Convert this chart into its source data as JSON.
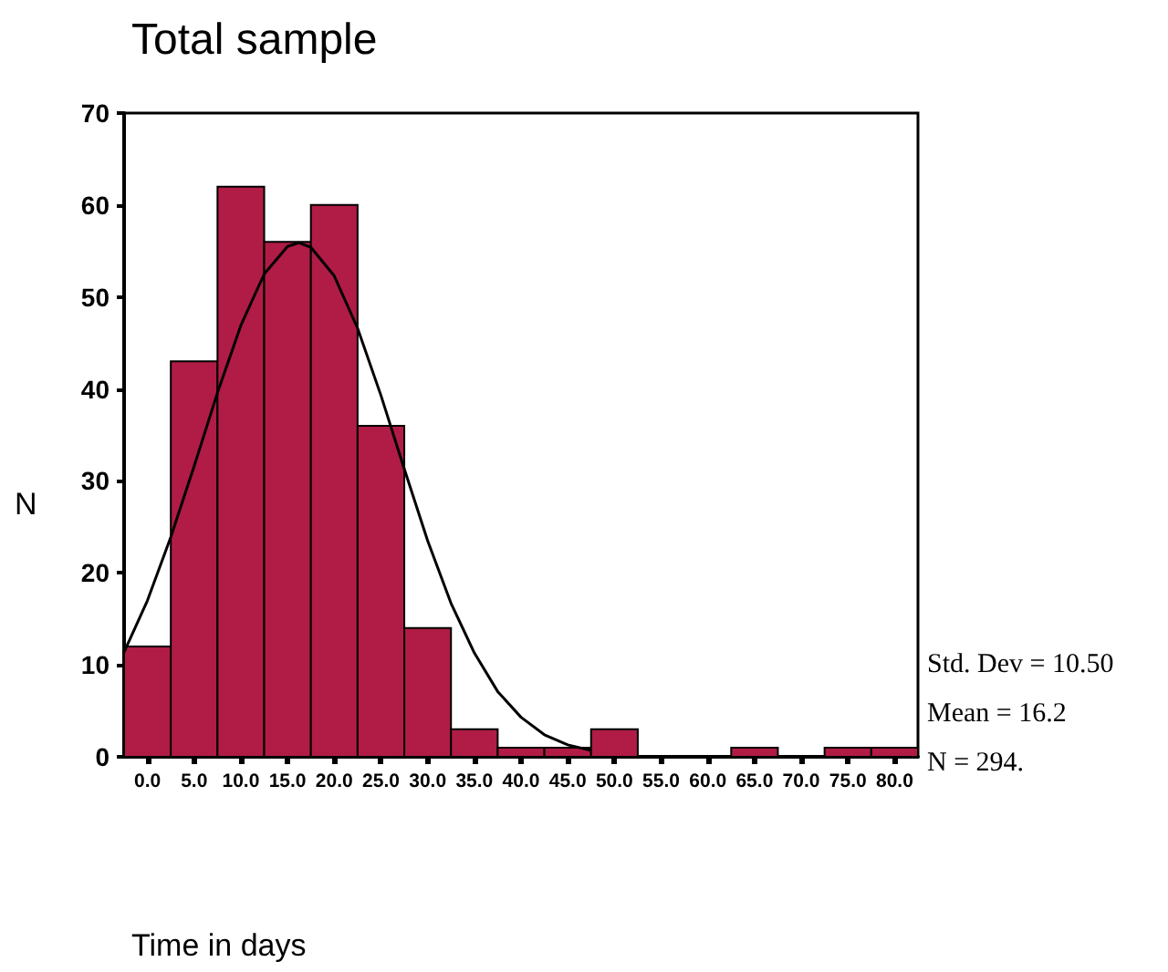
{
  "chart_data": {
    "type": "histogram",
    "title": "Total sample",
    "xlabel": "Time in days",
    "ylabel": "N",
    "annotations": [
      "Std. Dev = 10.50",
      "Mean = 16.2",
      "N = 294."
    ],
    "xlim": [
      -2.5,
      82.5
    ],
    "xticks": [
      {
        "value": 0,
        "label": "0.0"
      },
      {
        "value": 5,
        "label": "5.0"
      },
      {
        "value": 10,
        "label": "10.0"
      },
      {
        "value": 15,
        "label": "15.0"
      },
      {
        "value": 20,
        "label": "20.0"
      },
      {
        "value": 25,
        "label": "25.0"
      },
      {
        "value": 30,
        "label": "30.0"
      },
      {
        "value": 35,
        "label": "35.0"
      },
      {
        "value": 40,
        "label": "40.0"
      },
      {
        "value": 45,
        "label": "45.0"
      },
      {
        "value": 50,
        "label": "50.0"
      },
      {
        "value": 55,
        "label": "55.0"
      },
      {
        "value": 60,
        "label": "60.0"
      },
      {
        "value": 65,
        "label": "65.0"
      },
      {
        "value": 70,
        "label": "70.0"
      },
      {
        "value": 75,
        "label": "75.0"
      },
      {
        "value": 80,
        "label": "80.0"
      }
    ],
    "ylim": [
      0,
      70
    ],
    "yticks": [
      0,
      10,
      20,
      30,
      40,
      50,
      60,
      70
    ],
    "grid": false,
    "series": [
      {
        "type": "histogram",
        "color": "#b01c46",
        "bins": [
          -2.5,
          2.5,
          7.5,
          12.5,
          17.5,
          22.5,
          27.5,
          32.5,
          37.5,
          42.5,
          47.5,
          52.5,
          57.5,
          62.5,
          67.5,
          72.5,
          77.5,
          82.5
        ],
        "values": [
          12,
          43,
          62,
          56,
          60,
          36,
          14,
          3,
          1,
          1,
          3,
          0,
          0,
          1,
          0,
          1,
          1
        ]
      },
      {
        "type": "line",
        "color": "#000000",
        "marker": "none",
        "line_style": "solid",
        "x": [
          -2.5,
          0,
          2.5,
          5,
          7.5,
          10,
          12.5,
          15,
          16.2,
          17.5,
          20,
          22.5,
          25,
          27.5,
          30,
          32.5,
          35,
          37.5,
          40,
          42.5,
          45,
          47.5
        ],
        "values": [
          11.4,
          17,
          23.9,
          31.6,
          39.6,
          46.9,
          52.5,
          55.5,
          55.9,
          55.4,
          52.3,
          46.6,
          39.3,
          31.3,
          23.5,
          16.7,
          11.3,
          7.1,
          4.3,
          2.4,
          1.3,
          0.7
        ]
      }
    ]
  }
}
